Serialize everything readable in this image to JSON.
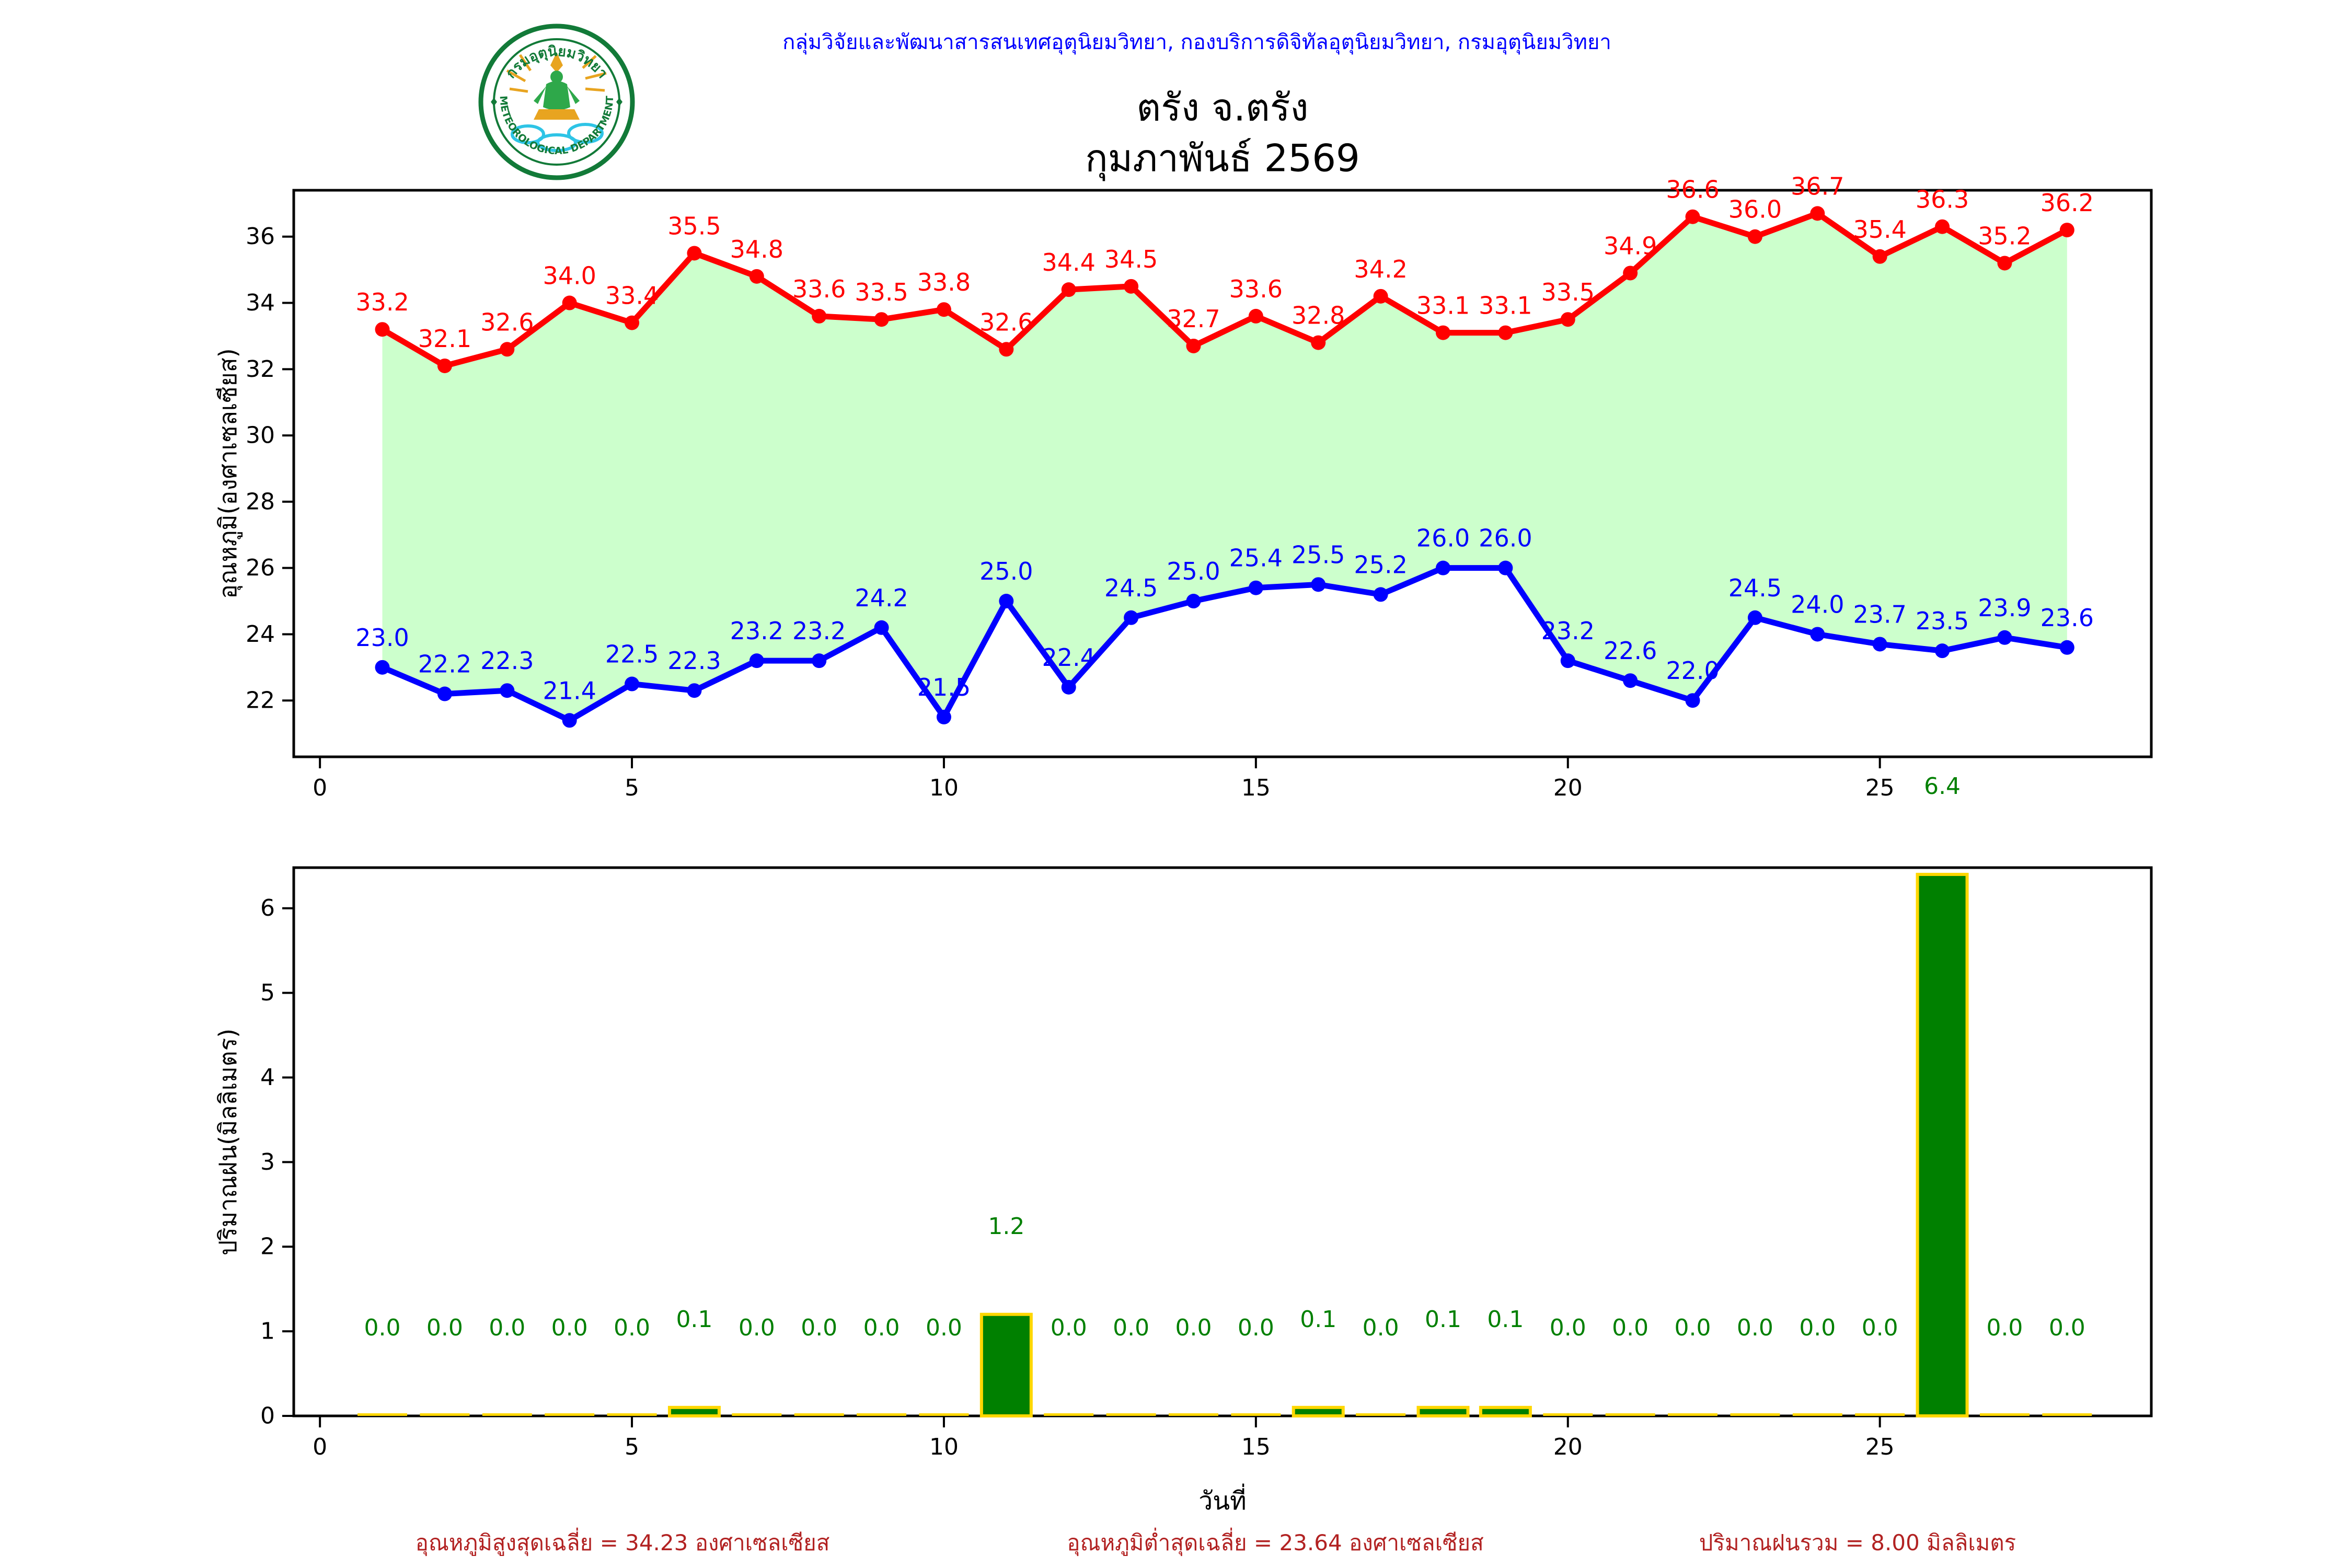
{
  "header": {
    "affiliation": "กลุ่มวิจัยและพัฒนาสารสนเทศอุตุนิยมวิทยา, กองบริการดิจิทัลอุตุนิยมวิทยา, กรมอุตุนิยมวิทยา",
    "color": "#0000FF"
  },
  "logo": {
    "top_text": "กรมอุตุนิยมวิทยา",
    "bottom_text": "METEOROLOGICAL DEPARTMENT",
    "ring_color": "#127a38",
    "cloud_color": "#2ec4e6",
    "gold_color": "#e8a420",
    "figure_color": "#2ea84a"
  },
  "title": {
    "line1": "ตรัง จ.ตรัง",
    "line2": "กุมภาพันธ์ 2569"
  },
  "chart_data": [
    {
      "type": "line",
      "title": "ตรัง จ.ตรัง กุมภาพันธ์ 2569",
      "x": [
        1,
        2,
        3,
        4,
        5,
        6,
        7,
        8,
        9,
        10,
        11,
        12,
        13,
        14,
        15,
        16,
        17,
        18,
        19,
        20,
        21,
        22,
        23,
        24,
        25,
        26,
        27,
        28
      ],
      "series": [
        {
          "name": "max_temperature",
          "color": "#FF0000",
          "values": [
            33.2,
            32.1,
            32.6,
            34.0,
            33.4,
            35.5,
            34.8,
            33.6,
            33.5,
            33.8,
            32.6,
            34.4,
            34.5,
            32.7,
            33.6,
            32.8,
            34.2,
            33.1,
            33.1,
            33.5,
            34.9,
            36.6,
            36.0,
            36.7,
            35.4,
            36.3,
            35.2,
            36.2
          ]
        },
        {
          "name": "min_temperature",
          "color": "#0000FF",
          "values": [
            23.0,
            22.2,
            22.3,
            21.4,
            22.5,
            22.3,
            23.2,
            23.2,
            24.2,
            21.5,
            25.0,
            22.4,
            24.5,
            25.0,
            25.4,
            25.5,
            25.2,
            26.0,
            26.0,
            23.2,
            22.6,
            22.0,
            24.5,
            24.0,
            23.7,
            23.5,
            23.9,
            23.6
          ]
        }
      ],
      "fill_between_color": "#CCFFCC",
      "data_labels": true,
      "ylabel": "อุณหภูมิ(องศาเซลเซียส)",
      "xlabel": "",
      "yticks": [
        22,
        24,
        26,
        28,
        30,
        32,
        34,
        36
      ],
      "xticks": [
        0,
        5,
        10,
        15,
        20,
        25
      ],
      "xlim": [
        -0.42,
        29.35
      ],
      "ylim": [
        20.3,
        37.4
      ],
      "grid": false,
      "legend": "none"
    },
    {
      "type": "bar",
      "x": [
        1,
        2,
        3,
        4,
        5,
        6,
        7,
        8,
        9,
        10,
        11,
        12,
        13,
        14,
        15,
        16,
        17,
        18,
        19,
        20,
        21,
        22,
        23,
        24,
        25,
        26,
        27,
        28
      ],
      "values": [
        0.0,
        0.0,
        0.0,
        0.0,
        0.0,
        0.1,
        0.0,
        0.0,
        0.0,
        0.0,
        1.2,
        0.0,
        0.0,
        0.0,
        0.0,
        0.1,
        0.0,
        0.1,
        0.1,
        0.0,
        0.0,
        0.0,
        0.0,
        0.0,
        0.0,
        6.4,
        0.0,
        0.0
      ],
      "bar_color": "#008000",
      "bar_edge_color": "#FFD700",
      "label_color": "#008000",
      "data_labels": true,
      "ylabel": "ปริมาณฝน(มิลลิเมตร)",
      "xlabel": "วันที่",
      "yticks": [
        0,
        1,
        2,
        3,
        4,
        5,
        6
      ],
      "xticks": [
        0,
        5,
        10,
        15,
        20,
        25
      ],
      "xlim": [
        -0.42,
        29.35
      ],
      "ylim": [
        0,
        6.48
      ],
      "grid": false,
      "legend": "none"
    }
  ],
  "summary": {
    "avg_max": "อุณหภูมิสูงสุดเฉลี่ย = 34.23 องศาเซลเซียส",
    "avg_min": "อุณหภูมิต่ำสุดเฉลี่ย = 23.64 องศาเซลเซียส",
    "total_rain": "ปริมาณฝนรวม = 8.00 มิลลิเมตร",
    "color": "#B22222"
  }
}
